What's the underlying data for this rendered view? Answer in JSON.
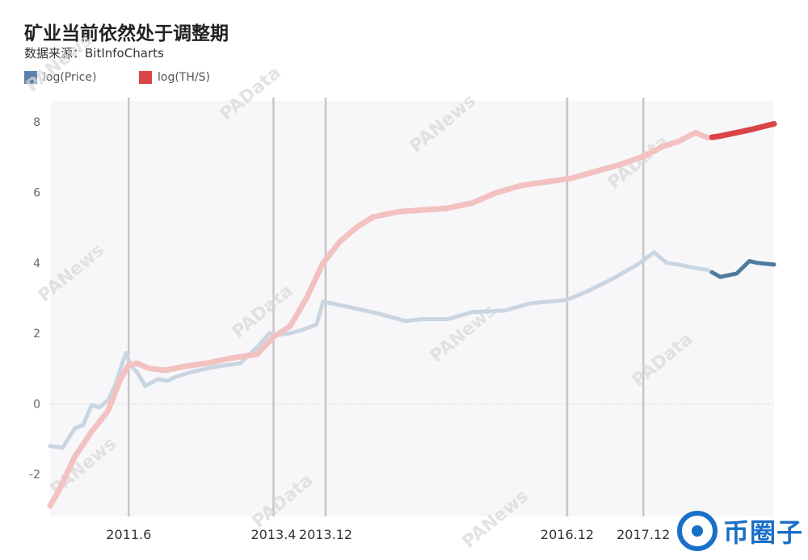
{
  "title": "矿业当前依然处于调整期",
  "subtitle": "数据来源：BitInfoCharts",
  "brand": {
    "text": "币圈子",
    "icon": "brand-logo-icon"
  },
  "watermarks": [
    "PANews",
    "PAData"
  ],
  "colors": {
    "price_light": "#c9d6e2",
    "price_dark": "#4e7a9d",
    "hash_light": "#f3c2c0",
    "hash_dark": "#d94446",
    "event_line": "#c6c6c6"
  },
  "chart_data": {
    "type": "line",
    "title": "矿业当前依然处于调整期",
    "xlabel": "",
    "ylabel": "",
    "xlim": [
      2010.5,
      2019.25
    ],
    "ylim": [
      -3.2,
      8.6
    ],
    "yticks": [
      -2,
      0,
      2,
      4,
      6,
      8
    ],
    "grid": false,
    "legend_placement": "top-left",
    "highlight_from": 2018.5,
    "event_lines": [
      {
        "x": 2011.45,
        "label": "2011.6"
      },
      {
        "x": 2013.2,
        "label": "2013.4"
      },
      {
        "x": 2013.83,
        "label": "2013.12"
      },
      {
        "x": 2016.75,
        "label": "2016.12"
      },
      {
        "x": 2017.67,
        "label": "2017.12"
      }
    ],
    "series": [
      {
        "name": "log(Price)",
        "x": [
          2010.5,
          2010.65,
          2010.8,
          2010.9,
          2011.0,
          2011.1,
          2011.2,
          2011.3,
          2011.38,
          2011.42,
          2011.47,
          2011.55,
          2011.65,
          2011.8,
          2011.92,
          2012.0,
          2012.2,
          2012.5,
          2012.8,
          2013.0,
          2013.15,
          2013.25,
          2013.4,
          2013.55,
          2013.72,
          2013.8,
          2013.9,
          2014.1,
          2014.4,
          2014.8,
          2015.0,
          2015.3,
          2015.6,
          2016.0,
          2016.3,
          2016.75,
          2017.0,
          2017.3,
          2017.6,
          2017.8,
          2017.95,
          2018.1,
          2018.3,
          2018.45,
          2018.6,
          2018.8,
          2018.95,
          2019.05,
          2019.25
        ],
        "values": [
          -1.2,
          -1.25,
          -0.7,
          -0.6,
          -0.05,
          -0.1,
          0.1,
          0.6,
          1.2,
          1.45,
          1.1,
          0.9,
          0.5,
          0.7,
          0.65,
          0.75,
          0.9,
          1.05,
          1.15,
          1.6,
          2.0,
          1.95,
          2.0,
          2.1,
          2.25,
          2.9,
          2.85,
          2.75,
          2.6,
          2.35,
          2.4,
          2.4,
          2.6,
          2.65,
          2.85,
          2.95,
          3.2,
          3.55,
          3.95,
          4.3,
          4.0,
          3.95,
          3.85,
          3.8,
          3.6,
          3.7,
          4.05,
          4.0,
          3.95
        ]
      },
      {
        "name": "log(TH/S)",
        "x": [
          2010.5,
          2010.6,
          2010.8,
          2011.0,
          2011.2,
          2011.35,
          2011.45,
          2011.55,
          2011.7,
          2011.9,
          2012.1,
          2012.4,
          2012.7,
          2013.0,
          2013.2,
          2013.4,
          2013.6,
          2013.8,
          2014.0,
          2014.2,
          2014.4,
          2014.7,
          2015.0,
          2015.3,
          2015.6,
          2015.9,
          2016.2,
          2016.5,
          2016.8,
          2017.1,
          2017.4,
          2017.7,
          2017.9,
          2018.1,
          2018.3,
          2018.45,
          2018.6,
          2018.8,
          2019.0,
          2019.25
        ],
        "values": [
          -2.9,
          -2.5,
          -1.5,
          -0.8,
          -0.2,
          0.7,
          1.1,
          1.15,
          1.0,
          0.95,
          1.05,
          1.15,
          1.3,
          1.4,
          1.9,
          2.2,
          3.0,
          4.0,
          4.6,
          5.0,
          5.3,
          5.45,
          5.5,
          5.55,
          5.7,
          6.0,
          6.2,
          6.3,
          6.4,
          6.6,
          6.8,
          7.05,
          7.3,
          7.45,
          7.7,
          7.55,
          7.6,
          7.7,
          7.8,
          7.95
        ]
      }
    ]
  }
}
